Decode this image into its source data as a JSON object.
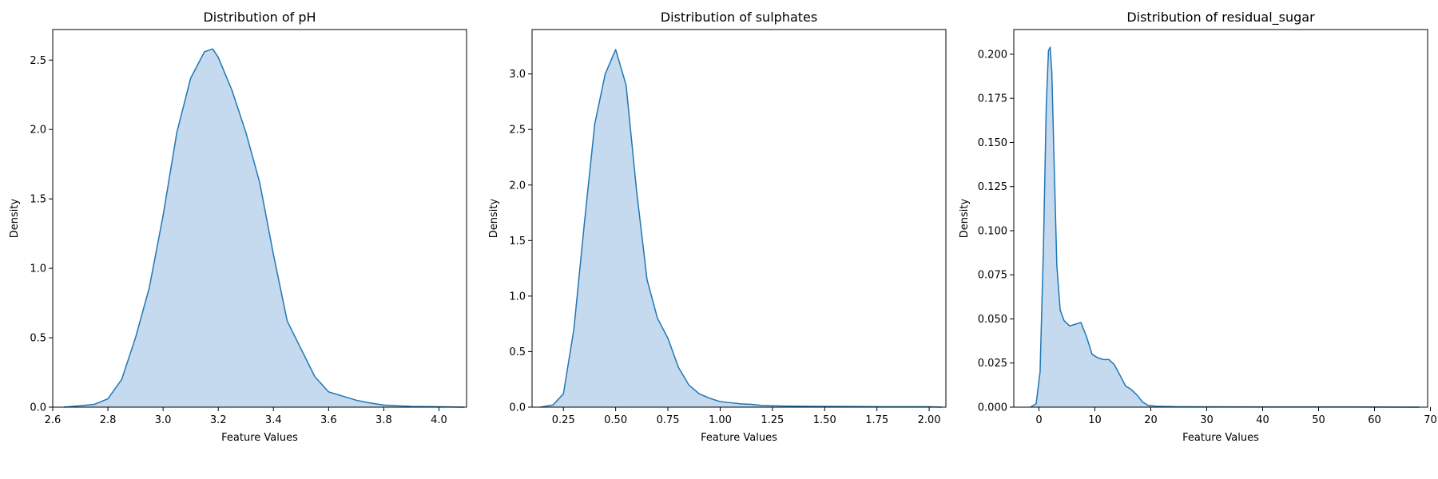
{
  "chart_data": [
    {
      "type": "area",
      "title": "Distribution of pH",
      "xlabel": "Feature Values",
      "ylabel": "Density",
      "xlim": [
        2.6,
        4.1
      ],
      "ylim": [
        0,
        2.72
      ],
      "xticks": [
        2.6,
        2.8,
        3.0,
        3.2,
        3.4,
        3.6,
        3.8,
        4.0
      ],
      "xtick_labels": [
        "2.6",
        "2.8",
        "3.0",
        "3.2",
        "3.4",
        "3.6",
        "3.8",
        "4.0"
      ],
      "yticks": [
        0,
        0.5,
        1.0,
        1.5,
        2.0,
        2.5
      ],
      "ytick_labels": [
        "0.0",
        "0.5",
        "1.0",
        "1.5",
        "2.0",
        "2.5"
      ],
      "series": [
        {
          "x": [
            2.64,
            2.7,
            2.75,
            2.8,
            2.85,
            2.9,
            2.95,
            3.0,
            3.05,
            3.1,
            3.15,
            3.18,
            3.2,
            3.25,
            3.3,
            3.35,
            3.4,
            3.45,
            3.5,
            3.55,
            3.6,
            3.65,
            3.7,
            3.75,
            3.8,
            3.9,
            4.0,
            4.09
          ],
          "y": [
            0.0,
            0.01,
            0.02,
            0.06,
            0.2,
            0.5,
            0.86,
            1.38,
            1.98,
            2.37,
            2.56,
            2.58,
            2.52,
            2.28,
            1.98,
            1.62,
            1.1,
            0.62,
            0.42,
            0.22,
            0.11,
            0.08,
            0.05,
            0.03,
            0.015,
            0.005,
            0.003,
            0.0
          ]
        }
      ]
    },
    {
      "type": "area",
      "title": "Distribution of sulphates",
      "xlabel": "Feature Values",
      "ylabel": "Density",
      "xlim": [
        0.1,
        2.08
      ],
      "ylim": [
        0,
        3.4
      ],
      "xticks": [
        0.25,
        0.5,
        0.75,
        1.0,
        1.25,
        1.5,
        1.75,
        2.0
      ],
      "xtick_labels": [
        "0.25",
        "0.50",
        "0.75",
        "1.00",
        "1.25",
        "1.50",
        "1.75",
        "2.00"
      ],
      "yticks": [
        0,
        0.5,
        1.0,
        1.5,
        2.0,
        2.5,
        3.0
      ],
      "ytick_labels": [
        "0.0",
        "0.5",
        "1.0",
        "1.5",
        "2.0",
        "2.5",
        "3.0"
      ],
      "series": [
        {
          "x": [
            0.14,
            0.2,
            0.25,
            0.3,
            0.35,
            0.4,
            0.45,
            0.5,
            0.55,
            0.6,
            0.65,
            0.7,
            0.75,
            0.8,
            0.85,
            0.9,
            0.95,
            1.0,
            1.05,
            1.1,
            1.15,
            1.2,
            1.3,
            1.4,
            1.6,
            1.8,
            2.0,
            2.06
          ],
          "y": [
            0.0,
            0.02,
            0.12,
            0.7,
            1.65,
            2.55,
            3.0,
            3.22,
            2.9,
            1.95,
            1.15,
            0.8,
            0.62,
            0.36,
            0.2,
            0.12,
            0.08,
            0.05,
            0.04,
            0.03,
            0.025,
            0.015,
            0.01,
            0.008,
            0.006,
            0.004,
            0.004,
            0.0
          ]
        }
      ]
    },
    {
      "type": "area",
      "title": "Distribution of residual_sugar",
      "xlabel": "Feature Values",
      "ylabel": "Density",
      "xlim": [
        -4.5,
        69.5
      ],
      "ylim": [
        0,
        0.214
      ],
      "xticks": [
        0,
        10,
        20,
        30,
        40,
        50,
        60,
        70
      ],
      "xtick_labels": [
        "0",
        "10",
        "20",
        "30",
        "40",
        "50",
        "60",
        "70"
      ],
      "yticks": [
        0,
        0.025,
        0.05,
        0.075,
        0.1,
        0.125,
        0.15,
        0.175,
        0.2
      ],
      "ytick_labels": [
        "0.000",
        "0.025",
        "0.050",
        "0.075",
        "0.100",
        "0.125",
        "0.150",
        "0.175",
        "0.200"
      ],
      "series": [
        {
          "x": [
            -1.5,
            -0.5,
            0.2,
            0.8,
            1.3,
            1.7,
            2.0,
            2.3,
            2.7,
            3.2,
            3.8,
            4.5,
            5.5,
            6.5,
            7.5,
            8.5,
            9.5,
            10.5,
            11.5,
            12.5,
            13.5,
            14.5,
            15.5,
            16.5,
            17.5,
            18.5,
            19.5,
            21,
            25,
            40,
            55,
            68
          ],
          "y": [
            0.0,
            0.002,
            0.02,
            0.09,
            0.17,
            0.202,
            0.204,
            0.19,
            0.14,
            0.08,
            0.055,
            0.049,
            0.046,
            0.047,
            0.048,
            0.04,
            0.03,
            0.028,
            0.027,
            0.027,
            0.024,
            0.018,
            0.012,
            0.01,
            0.007,
            0.003,
            0.001,
            0.0005,
            0.0002,
            0.0001,
            0.0001,
            0.0
          ]
        }
      ]
    }
  ],
  "colors": {
    "line": "#1f77b4",
    "fill": "#c5daee"
  }
}
